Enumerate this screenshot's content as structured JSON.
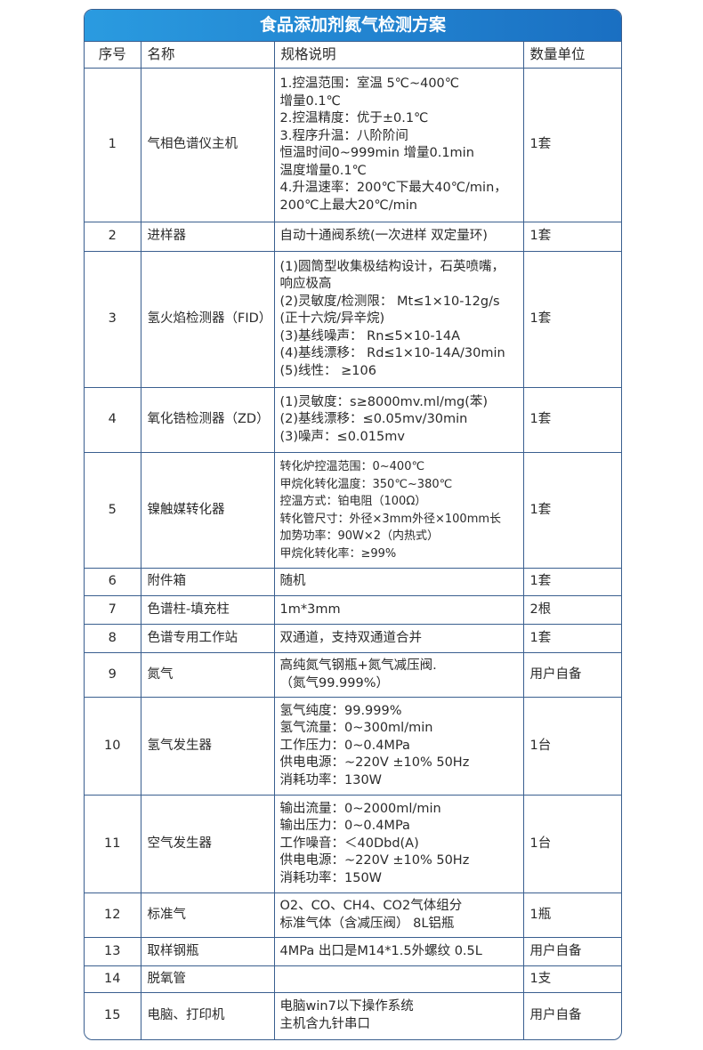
{
  "title": "食品添加剂氮气检测方案",
  "headers": [
    "序号",
    "名称",
    "规格说明",
    "数量单位"
  ],
  "rows": [
    {
      "no": "1",
      "name": "气相色谱仪主机",
      "spec": [
        "1.控温范围：室温 5℃~400℃",
        "增量0.1℃",
        "2.控温精度：优于±0.1℃",
        "3.程序升温：八阶阶间",
        "恒温时间0~999min 增量0.1min",
        "温度增量0.1℃",
        "4.升温速率：200℃下最大40℃/min，",
        "200℃上最大20℃/min"
      ],
      "qty": "1套"
    },
    {
      "no": "2",
      "name": "进样器",
      "spec": [
        "自动十通阀系统(一次进样 双定量环)"
      ],
      "qty": "1套"
    },
    {
      "no": "3",
      "name": "氢火焰检测器（FID）",
      "spec": [
        "(1)圆筒型收集极结构设计，石英喷嘴，",
        "响应极高",
        "(2)灵敏度/检测限： Mt≤1×10-12g/s",
        "(正十六烷/异辛烷)",
        "(3)基线噪声： Rn≤5×10-14A",
        "(4)基线漂移： Rd≤1×10-14A/30min",
        "(5)线性： ≥106"
      ],
      "qty": "1套"
    },
    {
      "no": "4",
      "name": "氧化锆检测器（ZD）",
      "spec": [
        "(1)灵敏度：s≥8000mv.ml/mg(苯)",
        "(2)基线漂移：≤0.05mv/30min",
        "(3)噪声：≤0.015mv"
      ],
      "qty": "1套"
    },
    {
      "no": "5",
      "name": "镍触媒转化器",
      "spec": [
        "转化炉控温范围：0~400℃",
        "甲烷化转化温度：350℃~380℃",
        "控温方式：铂电阻（100Ω）",
        "转化管尺寸：外径×3mm外径×100mm长",
        "加势功率：90W×2（内热式）",
        "甲烷化转化率：≥99%"
      ],
      "qty": "1套",
      "small": true
    },
    {
      "no": "6",
      "name": "附件箱",
      "spec": [
        "随机"
      ],
      "qty": "1套"
    },
    {
      "no": "7",
      "name": "色谱柱-填充柱",
      "spec": [
        "1m*3mm"
      ],
      "qty": "2根"
    },
    {
      "no": "8",
      "name": "色谱专用工作站",
      "spec": [
        "双通道，支持双通道合并"
      ],
      "qty": "1套"
    },
    {
      "no": "9",
      "name": "氮气",
      "spec": [
        "高纯氮气钢瓶+氮气减压阀.",
        "（氮气99.999%）"
      ],
      "qty": "用户自备"
    },
    {
      "no": "10",
      "name": "氢气发生器",
      "spec": [
        "氢气纯度：99.999%",
        "氢气流量：0~300ml/min",
        "工作压力：0~0.4MPa",
        "供电电源：~220V ±10% 50Hz",
        "消耗功率：130W"
      ],
      "qty": "1台"
    },
    {
      "no": "11",
      "name": "空气发生器",
      "spec": [
        "输出流量：0~2000ml/min",
        "输出压力：0~0.4MPa",
        "工作噪音：＜40Dbd(A)",
        "供电电源：~220V ±10% 50Hz",
        "消耗功率：150W"
      ],
      "qty": "1台"
    },
    {
      "no": "12",
      "name": "标准气",
      "spec": [
        "O2、CO、CH4、CO2气体组分",
        "标准气体（含减压阀） 8L铝瓶"
      ],
      "qty": "1瓶"
    },
    {
      "no": "13",
      "name": "取样钢瓶",
      "spec": [
        "4MPa 出口是M14*1.5外螺纹 0.5L"
      ],
      "qty": "用户自备"
    },
    {
      "no": "14",
      "name": "脱氧管",
      "spec": [],
      "qty": "1支"
    },
    {
      "no": "15",
      "name": "电脑、打印机",
      "spec": [
        "电脑win7以下操作系统",
        "主机含九针串口"
      ],
      "qty": "用户自备"
    }
  ]
}
